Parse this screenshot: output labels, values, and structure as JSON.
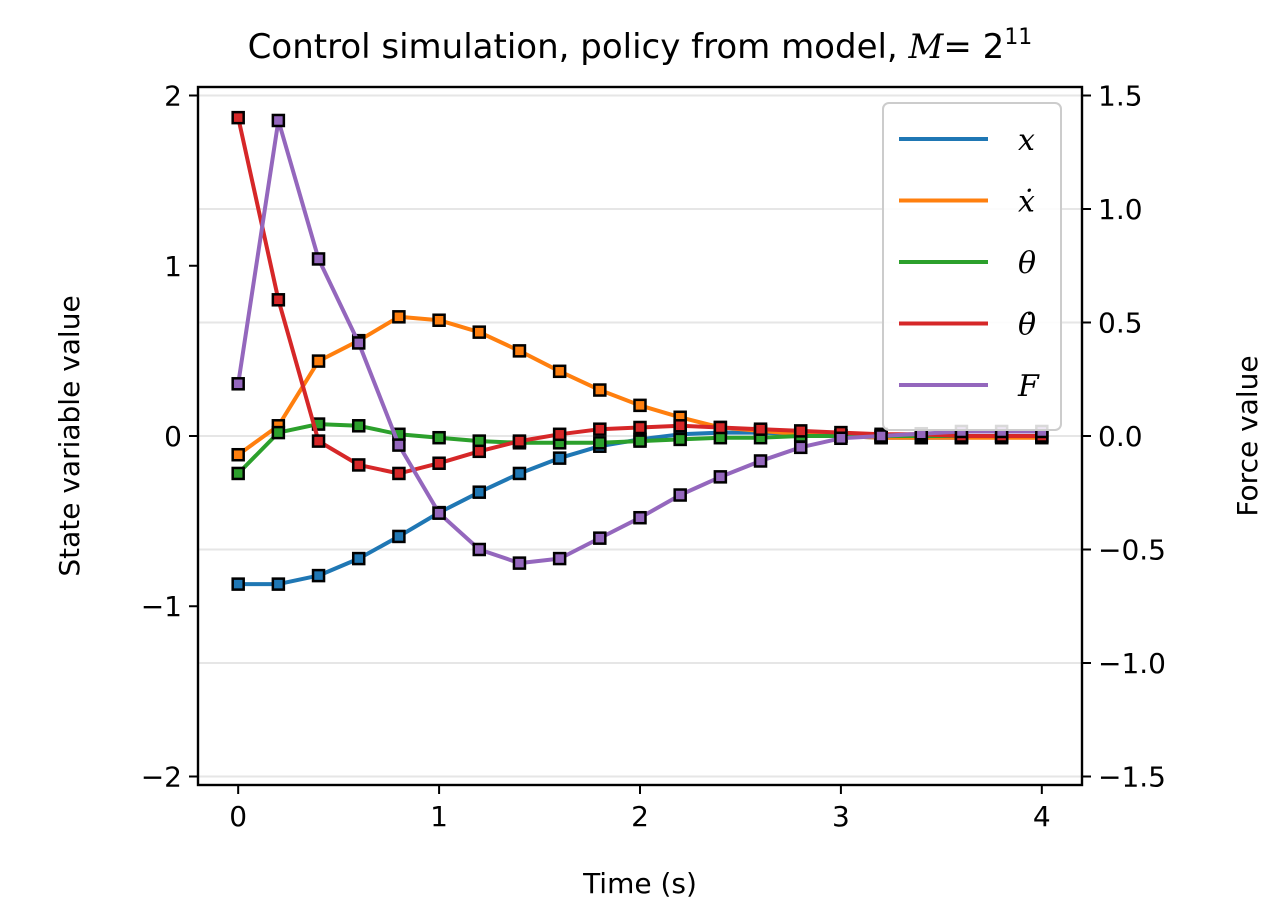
{
  "chart_data": {
    "type": "line",
    "title_main": "Control simulation, policy from model, ",
    "title_symbol": "M",
    "title_eq": "= 2",
    "title_exp": "11",
    "xlabel": "Time (s)",
    "ylabel_left": "State variable value",
    "ylabel_right": "Force value",
    "xlim": [
      -0.2,
      4.2
    ],
    "ylim_left": [
      -2.05,
      2.05
    ],
    "ylim_right": [
      -1.5375,
      1.5375
    ],
    "x_ticks": [
      0,
      1,
      2,
      3,
      4
    ],
    "x_tick_labels": [
      "0",
      "1",
      "2",
      "3",
      "4"
    ],
    "y_left_ticks": [
      -2,
      -1,
      0,
      1,
      2
    ],
    "y_left_tick_labels": [
      "−2",
      "−1",
      "0",
      "1",
      "2"
    ],
    "y_right_ticks": [
      -1.5,
      -1.0,
      -0.5,
      0.0,
      0.5,
      1.0,
      1.5
    ],
    "y_right_tick_labels": [
      "−1.5",
      "−1.0",
      "−0.5",
      "0.0",
      "0.5",
      "1.0",
      "1.5"
    ],
    "grid": "horizontal-right-axis",
    "legend_position": "top-right",
    "x": [
      0,
      0.2,
      0.4,
      0.6,
      0.8,
      1.0,
      1.2,
      1.4,
      1.6,
      1.8,
      2.0,
      2.2,
      2.4,
      2.6,
      2.8,
      3.0,
      3.2,
      3.4,
      3.6,
      3.8,
      4.0
    ],
    "series": [
      {
        "name": "x",
        "legend_label": "x",
        "axis": "left",
        "color": "#1f77b4",
        "values": [
          -0.87,
          -0.87,
          -0.82,
          -0.72,
          -0.59,
          -0.45,
          -0.33,
          -0.22,
          -0.13,
          -0.06,
          -0.02,
          0.01,
          0.02,
          0.02,
          0.01,
          0.0,
          -0.01,
          -0.01,
          -0.01,
          0.0,
          0.0
        ]
      },
      {
        "name": "x-dot",
        "legend_label": "ẋ",
        "axis": "left",
        "color": "#ff7f0e",
        "values": [
          -0.11,
          0.06,
          0.44,
          0.56,
          0.7,
          0.68,
          0.61,
          0.5,
          0.38,
          0.27,
          0.18,
          0.11,
          0.05,
          0.03,
          0.01,
          0.0,
          -0.01,
          -0.01,
          -0.01,
          -0.01,
          -0.01
        ]
      },
      {
        "name": "theta",
        "legend_label": "θ",
        "axis": "left",
        "color": "#2ca02c",
        "values": [
          -0.22,
          0.02,
          0.07,
          0.06,
          0.01,
          -0.01,
          -0.03,
          -0.04,
          -0.04,
          -0.04,
          -0.03,
          -0.02,
          -0.01,
          -0.01,
          0.0,
          0.0,
          0.0,
          0.0,
          0.0,
          0.0,
          0.0
        ]
      },
      {
        "name": "theta-dot",
        "legend_label": "θ̇",
        "axis": "left",
        "color": "#d62728",
        "values": [
          1.87,
          0.8,
          -0.03,
          -0.17,
          -0.22,
          -0.16,
          -0.09,
          -0.03,
          0.01,
          0.04,
          0.05,
          0.06,
          0.05,
          0.04,
          0.03,
          0.02,
          0.01,
          0.01,
          0.0,
          0.0,
          0.0
        ]
      },
      {
        "name": "F",
        "legend_label": "F",
        "axis": "right",
        "color": "#9467bd",
        "values": [
          0.23,
          1.39,
          0.78,
          0.41,
          -0.04,
          -0.34,
          -0.5,
          -0.56,
          -0.54,
          -0.45,
          -0.36,
          -0.26,
          -0.18,
          -0.11,
          -0.05,
          -0.01,
          0.0,
          0.01,
          0.02,
          0.02,
          0.02
        ]
      }
    ]
  }
}
